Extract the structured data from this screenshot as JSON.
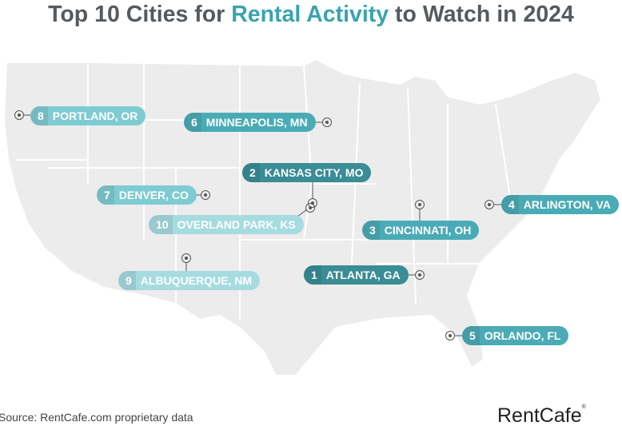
{
  "title": {
    "pre": "Top 10 Cities for ",
    "highlight": "Rental Activity",
    "post": " to Watch in 2024"
  },
  "colors": {
    "tier1": "#3a8c95",
    "tier2": "#4aabb6",
    "tier3": "#7ecbd2",
    "tier4": "#a6dbe0",
    "map": "#ececec",
    "accent": "#3aa3b0"
  },
  "cities": [
    {
      "rank": "1",
      "name": "ATLANTA, GA"
    },
    {
      "rank": "2",
      "name": "KANSAS CITY, MO"
    },
    {
      "rank": "3",
      "name": "CINCINNATI, OH"
    },
    {
      "rank": "4",
      "name": "ARLINGTON, VA"
    },
    {
      "rank": "5",
      "name": "ORLANDO, FL"
    },
    {
      "rank": "6",
      "name": "MINNEAPOLIS, MN"
    },
    {
      "rank": "7",
      "name": "DENVER, CO"
    },
    {
      "rank": "8",
      "name": "PORTLAND, OR"
    },
    {
      "rank": "9",
      "name": "ALBUQUERQUE, NM"
    },
    {
      "rank": "10",
      "name": "OVERLAND PARK, KS"
    }
  ],
  "source": "Source: RentCafe.com proprietary data",
  "logo": "RentCafe"
}
